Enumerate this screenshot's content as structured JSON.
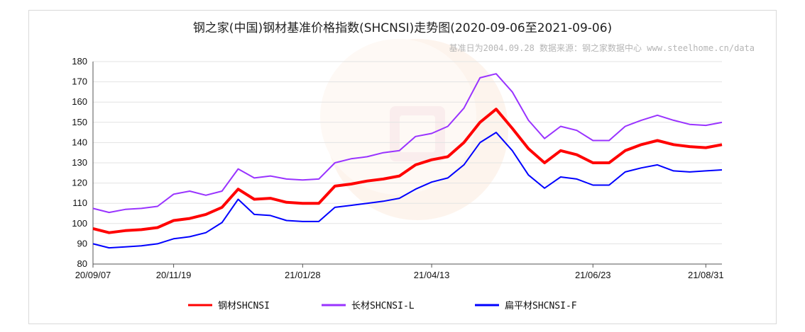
{
  "chart_data": {
    "type": "line",
    "title": "钢之家(中国)钢材基准价格指数(SHCNSI)走势图(2020-09-06至2021-09-06)",
    "subtitle": "基准日为2004.09.28  数据来源：钢之家数据中心 www.steelhome.cn/data",
    "xlabel": "",
    "ylabel": "",
    "ylim": [
      80,
      180
    ],
    "yticks": [
      80,
      90,
      100,
      110,
      120,
      130,
      140,
      150,
      160,
      170,
      180
    ],
    "xtick_labels": [
      "20/09/07",
      "20/11/19",
      "21/01/28",
      "21/04/13",
      "21/06/23",
      "21/08/31"
    ],
    "grid": true,
    "legend_position": "bottom",
    "x": [
      "20/09/07",
      "20/09/21",
      "20/10/05",
      "20/10/19",
      "20/11/02",
      "20/11/19",
      "20/11/30",
      "20/12/14",
      "20/12/28",
      "20/12/31",
      "21/01/07",
      "21/01/14",
      "21/01/21",
      "21/01/28",
      "21/02/11",
      "21/02/25",
      "21/03/01",
      "21/03/08",
      "21/03/15",
      "21/03/22",
      "21/03/29",
      "21/04/13",
      "21/04/26",
      "21/05/06",
      "21/05/12",
      "21/05/16",
      "21/05/20",
      "21/05/25",
      "21/05/31",
      "21/06/07",
      "21/06/15",
      "21/06/23",
      "21/07/01",
      "21/07/12",
      "21/07/19",
      "21/07/26",
      "21/08/09",
      "21/08/23",
      "21/08/31",
      "21/09/06"
    ],
    "series": [
      {
        "name": "钢材SHCNSI",
        "color": "#ff0000",
        "values": [
          97.5,
          95.5,
          96.5,
          97.0,
          98.0,
          101.5,
          102.5,
          104.5,
          108.0,
          117.0,
          112.0,
          112.5,
          110.5,
          110.0,
          110.0,
          118.5,
          119.5,
          121.0,
          122.0,
          123.5,
          129.0,
          131.5,
          133.0,
          140.0,
          150.0,
          156.5,
          147.0,
          137.0,
          130.0,
          136.0,
          134.0,
          130.0,
          130.0,
          136.0,
          139.0,
          141.0,
          139.0,
          138.0,
          137.5,
          139.0
        ]
      },
      {
        "name": "长材SHCNSI-L",
        "color": "#9933ff",
        "values": [
          107.5,
          105.5,
          107.0,
          107.5,
          108.5,
          114.5,
          116.0,
          114.0,
          116.0,
          127.0,
          122.5,
          123.5,
          122.0,
          121.5,
          122.0,
          130.0,
          132.0,
          133.0,
          135.0,
          136.0,
          143.0,
          144.5,
          148.0,
          157.0,
          172.0,
          174.0,
          165.0,
          151.0,
          142.0,
          148.0,
          146.0,
          141.0,
          141.0,
          148.0,
          151.0,
          153.5,
          151.0,
          149.0,
          148.5,
          150.0
        ]
      },
      {
        "name": "扁平材SHCNSI-F",
        "color": "#0000ff",
        "values": [
          90.0,
          88.0,
          88.5,
          89.0,
          90.0,
          92.5,
          93.5,
          95.5,
          100.5,
          112.0,
          104.5,
          104.0,
          101.5,
          101.0,
          101.0,
          108.0,
          109.0,
          110.0,
          111.0,
          112.5,
          117.0,
          120.5,
          122.5,
          129.0,
          140.0,
          145.0,
          136.0,
          124.0,
          117.5,
          123.0,
          122.0,
          119.0,
          119.0,
          125.5,
          127.5,
          129.0,
          126.0,
          125.5,
          126.0,
          126.5
        ]
      }
    ]
  },
  "legend": {
    "items": [
      {
        "label": "钢材SHCNSI",
        "color": "#ff0000"
      },
      {
        "label": "长材SHCNSI-L",
        "color": "#9933ff"
      },
      {
        "label": "扁平材SHCNSI-F",
        "color": "#0000ff"
      }
    ]
  }
}
